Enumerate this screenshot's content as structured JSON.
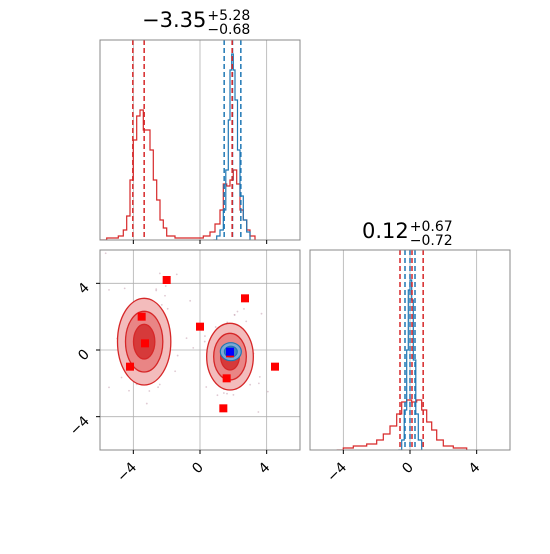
{
  "chart_data": {
    "type": "scatter",
    "kind": "corner-plot",
    "grid": true,
    "axis_range": [
      -6,
      6
    ],
    "tick_labels": [
      "−4",
      "0",
      "4"
    ],
    "tick_values": [
      -4,
      0,
      4
    ],
    "colors": {
      "red": "#d62728",
      "blue": "#1f77b4",
      "marker": "#ff0000",
      "grid": "#b0b0b0"
    },
    "param1": {
      "title_main": "−3.35",
      "title_plus": "+5.28",
      "title_minus": "−0.68",
      "red_quantiles": [
        -4.03,
        -3.35,
        1.93
      ],
      "blue_quantiles": [
        1.45,
        1.95,
        2.45
      ],
      "red_hist": [
        {
          "x": -6.0,
          "c": 0
        },
        {
          "x": -5.6,
          "c": 0.01
        },
        {
          "x": -5.2,
          "c": 0.01
        },
        {
          "x": -4.9,
          "c": 0.02
        },
        {
          "x": -4.6,
          "c": 0.05
        },
        {
          "x": -4.4,
          "c": 0.12
        },
        {
          "x": -4.2,
          "c": 0.3
        },
        {
          "x": -4.0,
          "c": 0.5
        },
        {
          "x": -3.8,
          "c": 0.62
        },
        {
          "x": -3.6,
          "c": 0.65
        },
        {
          "x": -3.4,
          "c": 0.55
        },
        {
          "x": -3.2,
          "c": 0.55
        },
        {
          "x": -3.0,
          "c": 0.45
        },
        {
          "x": -2.8,
          "c": 0.3
        },
        {
          "x": -2.6,
          "c": 0.2
        },
        {
          "x": -2.4,
          "c": 0.1
        },
        {
          "x": -2.2,
          "c": 0.06
        },
        {
          "x": -2.0,
          "c": 0.02
        },
        {
          "x": -1.5,
          "c": 0.01
        },
        {
          "x": -1.0,
          "c": 0.01
        },
        {
          "x": -0.2,
          "c": 0.01
        },
        {
          "x": 0.2,
          "c": 0.02
        },
        {
          "x": 0.6,
          "c": 0.04
        },
        {
          "x": 0.9,
          "c": 0.08
        },
        {
          "x": 1.2,
          "c": 0.15
        },
        {
          "x": 1.4,
          "c": 0.28
        },
        {
          "x": 1.6,
          "c": 0.27
        },
        {
          "x": 1.8,
          "c": 0.3
        },
        {
          "x": 2.0,
          "c": 0.35
        },
        {
          "x": 2.2,
          "c": 0.28
        },
        {
          "x": 2.4,
          "c": 0.15
        },
        {
          "x": 2.6,
          "c": 0.1
        },
        {
          "x": 2.8,
          "c": 0.05
        },
        {
          "x": 3.0,
          "c": 0.02
        },
        {
          "x": 3.3,
          "c": 0.0
        }
      ],
      "blue_hist": [
        {
          "x": 0.8,
          "c": 0
        },
        {
          "x": 1.0,
          "c": 0.02
        },
        {
          "x": 1.2,
          "c": 0.05
        },
        {
          "x": 1.4,
          "c": 0.15
        },
        {
          "x": 1.55,
          "c": 0.35
        },
        {
          "x": 1.7,
          "c": 0.6
        },
        {
          "x": 1.8,
          "c": 0.85
        },
        {
          "x": 1.9,
          "c": 0.93
        },
        {
          "x": 2.0,
          "c": 0.85
        },
        {
          "x": 2.1,
          "c": 0.7
        },
        {
          "x": 2.25,
          "c": 0.45
        },
        {
          "x": 2.4,
          "c": 0.22
        },
        {
          "x": 2.6,
          "c": 0.1
        },
        {
          "x": 2.8,
          "c": 0.04
        },
        {
          "x": 3.0,
          "c": 0.0
        }
      ]
    },
    "param2": {
      "title_main": "0.12",
      "title_plus": "+0.67",
      "title_minus": "−0.72",
      "red_quantiles": [
        -0.6,
        0.12,
        0.79
      ],
      "blue_quantiles": [
        -0.3,
        0.0,
        0.3
      ],
      "red_hist": [
        {
          "x": -4.4,
          "c": 0
        },
        {
          "x": -4.0,
          "c": 0.01
        },
        {
          "x": -3.4,
          "c": 0.02
        },
        {
          "x": -2.6,
          "c": 0.03
        },
        {
          "x": -2.0,
          "c": 0.05
        },
        {
          "x": -1.6,
          "c": 0.08
        },
        {
          "x": -1.2,
          "c": 0.12
        },
        {
          "x": -0.8,
          "c": 0.18
        },
        {
          "x": -0.5,
          "c": 0.24
        },
        {
          "x": -0.2,
          "c": 0.25
        },
        {
          "x": 0.1,
          "c": 0.24
        },
        {
          "x": 0.4,
          "c": 0.25
        },
        {
          "x": 0.7,
          "c": 0.2
        },
        {
          "x": 1.0,
          "c": 0.14
        },
        {
          "x": 1.3,
          "c": 0.1
        },
        {
          "x": 1.6,
          "c": 0.05
        },
        {
          "x": 2.0,
          "c": 0.02
        },
        {
          "x": 2.6,
          "c": 0.01
        },
        {
          "x": 3.4,
          "c": 0.0
        }
      ],
      "blue_hist": [
        {
          "x": -0.7,
          "c": 0
        },
        {
          "x": -0.5,
          "c": 0.05
        },
        {
          "x": -0.35,
          "c": 0.2
        },
        {
          "x": -0.2,
          "c": 0.5
        },
        {
          "x": -0.1,
          "c": 0.8
        },
        {
          "x": 0.0,
          "c": 0.85
        },
        {
          "x": 0.1,
          "c": 0.75
        },
        {
          "x": 0.2,
          "c": 0.45
        },
        {
          "x": 0.35,
          "c": 0.18
        },
        {
          "x": 0.5,
          "c": 0.05
        },
        {
          "x": 0.7,
          "c": 0.0
        }
      ]
    },
    "red_modes": [
      {
        "cx": -3.35,
        "cy": 0.5,
        "sx": 0.8,
        "sy": 1.3
      },
      {
        "cx": 1.8,
        "cy": -0.4,
        "sx": 0.7,
        "sy": 1.0
      }
    ],
    "blue_mode": {
      "cx": 1.85,
      "cy": -0.1,
      "sx": 0.35,
      "sy": 0.3
    },
    "red_squares": [
      {
        "x": -2.0,
        "y": 4.2
      },
      {
        "x": 2.7,
        "y": 3.1
      },
      {
        "x": -3.5,
        "y": 2.0
      },
      {
        "x": 0.0,
        "y": 1.4
      },
      {
        "x": -3.3,
        "y": 0.4
      },
      {
        "x": -4.2,
        "y": -1.0
      },
      {
        "x": 1.8,
        "y": -0.2
      },
      {
        "x": 1.6,
        "y": -1.7
      },
      {
        "x": 1.4,
        "y": -3.5
      },
      {
        "x": 4.5,
        "y": -1.0
      }
    ],
    "blue_square": {
      "x": 1.8,
      "y": -0.1
    }
  }
}
